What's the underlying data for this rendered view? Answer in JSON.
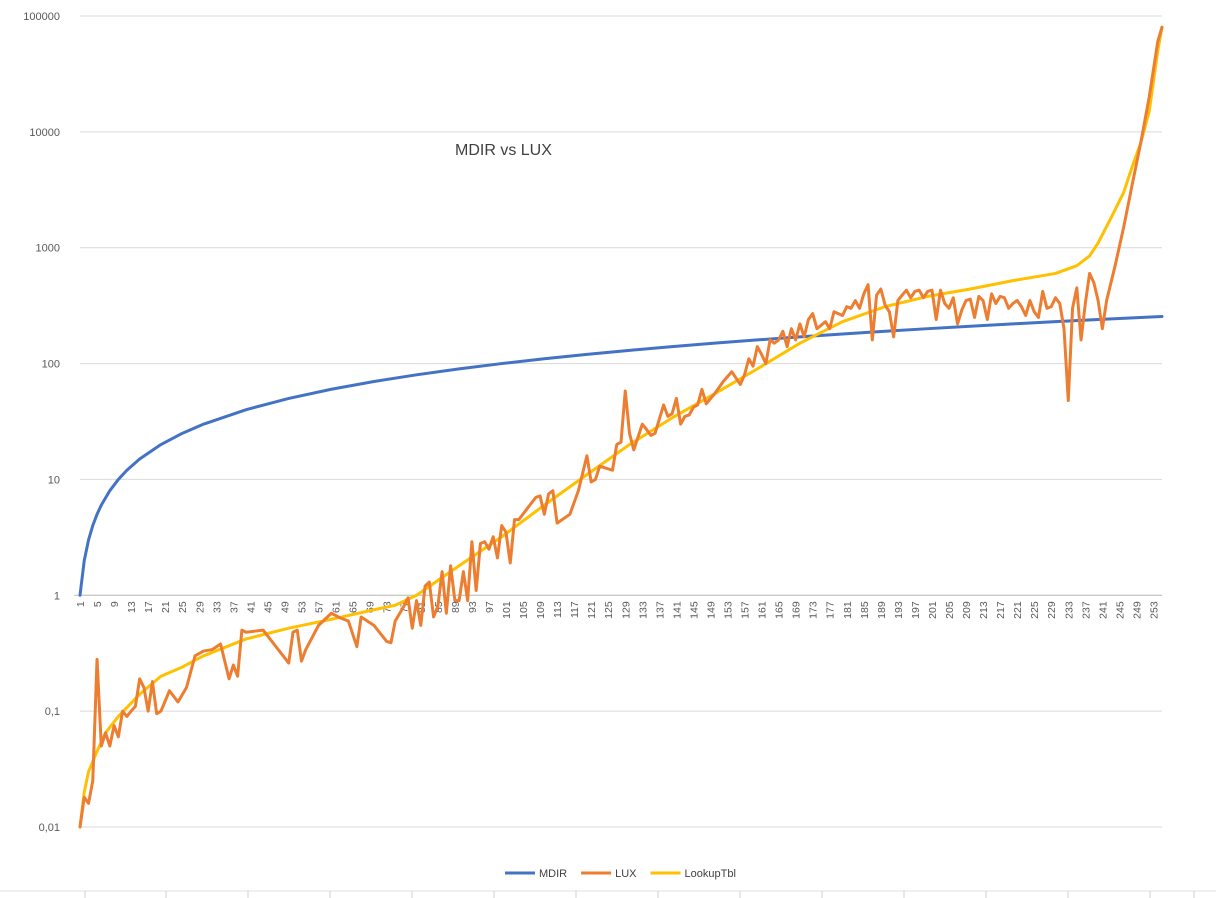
{
  "chart_data": {
    "type": "line",
    "title": "MDIR vs LUX",
    "xlabel": "",
    "ylabel": "",
    "y_scale": "log",
    "ylim": [
      0.01,
      100000
    ],
    "y_tick_labels": [
      "0,01",
      "0,1",
      "1",
      "10",
      "100",
      "1000",
      "10000",
      "100000"
    ],
    "x": "1..255",
    "x_tick_labels": [
      "1",
      "5",
      "9",
      "13",
      "17",
      "21",
      "25",
      "29",
      "33",
      "37",
      "41",
      "45",
      "49",
      "53",
      "57",
      "61",
      "65",
      "69",
      "73",
      "77",
      "81",
      "85",
      "89",
      "93",
      "97",
      "101",
      "105",
      "109",
      "113",
      "117",
      "121",
      "125",
      "129",
      "133",
      "137",
      "141",
      "145",
      "149",
      "153",
      "157",
      "161",
      "165",
      "169",
      "173",
      "177",
      "181",
      "185",
      "189",
      "193",
      "197",
      "201",
      "205",
      "209",
      "213",
      "217",
      "221",
      "225",
      "229",
      "233",
      "237",
      "241",
      "245",
      "249",
      "253"
    ],
    "legend_position": "bottom",
    "grid": true,
    "series": [
      {
        "name": "MDIR",
        "color": "#4472C4",
        "points": [
          [
            1,
            1
          ],
          [
            2,
            2
          ],
          [
            3,
            3
          ],
          [
            4,
            4
          ],
          [
            5,
            5
          ],
          [
            6,
            6
          ],
          [
            8,
            8
          ],
          [
            10,
            10
          ],
          [
            12,
            12
          ],
          [
            15,
            15
          ],
          [
            20,
            20
          ],
          [
            25,
            25
          ],
          [
            30,
            30
          ],
          [
            40,
            40
          ],
          [
            50,
            50
          ],
          [
            60,
            60
          ],
          [
            70,
            70
          ],
          [
            80,
            80
          ],
          [
            90,
            90
          ],
          [
            100,
            100
          ],
          [
            110,
            110
          ],
          [
            120,
            120
          ],
          [
            130,
            130
          ],
          [
            140,
            140
          ],
          [
            150,
            150
          ],
          [
            160,
            160
          ],
          [
            170,
            170
          ],
          [
            180,
            180
          ],
          [
            190,
            190
          ],
          [
            200,
            200
          ],
          [
            210,
            210
          ],
          [
            220,
            220
          ],
          [
            230,
            230
          ],
          [
            240,
            240
          ],
          [
            250,
            250
          ],
          [
            255,
            255
          ]
        ]
      },
      {
        "name": "LUX",
        "color": "#ED7D31",
        "points": [
          [
            1,
            0.01
          ],
          [
            2,
            0.018
          ],
          [
            3,
            0.016
          ],
          [
            4,
            0.025
          ],
          [
            5,
            0.28
          ],
          [
            6,
            0.05
          ],
          [
            7,
            0.065
          ],
          [
            8,
            0.05
          ],
          [
            9,
            0.075
          ],
          [
            10,
            0.06
          ],
          [
            11,
            0.1
          ],
          [
            12,
            0.09
          ],
          [
            13,
            0.1
          ],
          [
            14,
            0.11
          ],
          [
            15,
            0.19
          ],
          [
            16,
            0.16
          ],
          [
            17,
            0.1
          ],
          [
            18,
            0.18
          ],
          [
            19,
            0.095
          ],
          [
            20,
            0.1
          ],
          [
            22,
            0.15
          ],
          [
            24,
            0.12
          ],
          [
            26,
            0.16
          ],
          [
            28,
            0.3
          ],
          [
            30,
            0.33
          ],
          [
            32,
            0.34
          ],
          [
            34,
            0.38
          ],
          [
            36,
            0.19
          ],
          [
            37,
            0.25
          ],
          [
            38,
            0.2
          ],
          [
            39,
            0.5
          ],
          [
            40,
            0.48
          ],
          [
            42,
            0.49
          ],
          [
            44,
            0.5
          ],
          [
            50,
            0.26
          ],
          [
            51,
            0.48
          ],
          [
            52,
            0.5
          ],
          [
            53,
            0.27
          ],
          [
            54,
            0.34
          ],
          [
            57,
            0.55
          ],
          [
            60,
            0.7
          ],
          [
            62,
            0.64
          ],
          [
            64,
            0.6
          ],
          [
            66,
            0.36
          ],
          [
            67,
            0.65
          ],
          [
            70,
            0.55
          ],
          [
            73,
            0.4
          ],
          [
            74,
            0.39
          ],
          [
            75,
            0.6
          ],
          [
            77,
            0.8
          ],
          [
            78,
            0.95
          ],
          [
            79,
            0.52
          ],
          [
            80,
            0.9
          ],
          [
            81,
            0.55
          ],
          [
            82,
            1.2
          ],
          [
            83,
            1.3
          ],
          [
            84,
            0.65
          ],
          [
            85,
            0.8
          ],
          [
            86,
            1.6
          ],
          [
            87,
            0.7
          ],
          [
            88,
            1.8
          ],
          [
            89,
            0.9
          ],
          [
            90,
            0.9
          ],
          [
            91,
            1.6
          ],
          [
            92,
            0.9
          ],
          [
            93,
            2.9
          ],
          [
            94,
            1.1
          ],
          [
            95,
            2.8
          ],
          [
            96,
            2.9
          ],
          [
            97,
            2.5
          ],
          [
            98,
            3.2
          ],
          [
            99,
            2.1
          ],
          [
            100,
            4
          ],
          [
            101,
            3.5
          ],
          [
            102,
            1.9
          ],
          [
            103,
            4.5
          ],
          [
            104,
            4.5
          ],
          [
            108,
            7
          ],
          [
            109,
            7.2
          ],
          [
            110,
            5
          ],
          [
            111,
            7.5
          ],
          [
            112,
            8
          ],
          [
            113,
            4.2
          ],
          [
            116,
            5
          ],
          [
            118,
            8
          ],
          [
            120,
            16
          ],
          [
            121,
            9.5
          ],
          [
            122,
            10
          ],
          [
            123,
            13
          ],
          [
            126,
            12
          ],
          [
            127,
            20
          ],
          [
            128,
            21
          ],
          [
            129,
            58
          ],
          [
            130,
            25
          ],
          [
            131,
            18
          ],
          [
            133,
            30
          ],
          [
            134,
            27
          ],
          [
            135,
            24
          ],
          [
            136,
            25
          ],
          [
            138,
            44
          ],
          [
            139,
            35
          ],
          [
            140,
            37
          ],
          [
            141,
            50
          ],
          [
            142,
            30
          ],
          [
            143,
            35
          ],
          [
            144,
            36
          ],
          [
            145,
            42
          ],
          [
            146,
            44
          ],
          [
            147,
            60
          ],
          [
            148,
            45
          ],
          [
            150,
            55
          ],
          [
            152,
            70
          ],
          [
            154,
            85
          ],
          [
            155,
            75
          ],
          [
            156,
            66
          ],
          [
            157,
            80
          ],
          [
            158,
            110
          ],
          [
            159,
            95
          ],
          [
            160,
            140
          ],
          [
            161,
            120
          ],
          [
            162,
            100
          ],
          [
            163,
            160
          ],
          [
            164,
            150
          ],
          [
            165,
            160
          ],
          [
            166,
            190
          ],
          [
            167,
            140
          ],
          [
            168,
            200
          ],
          [
            169,
            160
          ],
          [
            170,
            220
          ],
          [
            171,
            170
          ],
          [
            172,
            240
          ],
          [
            173,
            270
          ],
          [
            174,
            200
          ],
          [
            176,
            230
          ],
          [
            177,
            200
          ],
          [
            178,
            280
          ],
          [
            180,
            260
          ],
          [
            181,
            310
          ],
          [
            182,
            300
          ],
          [
            183,
            350
          ],
          [
            184,
            300
          ],
          [
            185,
            400
          ],
          [
            186,
            480
          ],
          [
            187,
            160
          ],
          [
            188,
            390
          ],
          [
            189,
            440
          ],
          [
            190,
            320
          ],
          [
            191,
            280
          ],
          [
            192,
            170
          ],
          [
            193,
            350
          ],
          [
            194,
            390
          ],
          [
            195,
            430
          ],
          [
            196,
            370
          ],
          [
            197,
            420
          ],
          [
            198,
            430
          ],
          [
            199,
            370
          ],
          [
            200,
            420
          ],
          [
            201,
            430
          ],
          [
            202,
            240
          ],
          [
            203,
            430
          ],
          [
            204,
            330
          ],
          [
            205,
            300
          ],
          [
            206,
            370
          ],
          [
            207,
            220
          ],
          [
            208,
            290
          ],
          [
            209,
            350
          ],
          [
            210,
            360
          ],
          [
            211,
            250
          ],
          [
            212,
            380
          ],
          [
            213,
            350
          ],
          [
            214,
            240
          ],
          [
            215,
            400
          ],
          [
            216,
            330
          ],
          [
            217,
            380
          ],
          [
            218,
            370
          ],
          [
            219,
            300
          ],
          [
            220,
            330
          ],
          [
            221,
            350
          ],
          [
            222,
            310
          ],
          [
            223,
            260
          ],
          [
            224,
            350
          ],
          [
            225,
            280
          ],
          [
            226,
            250
          ],
          [
            227,
            420
          ],
          [
            228,
            300
          ],
          [
            229,
            310
          ],
          [
            230,
            370
          ],
          [
            231,
            330
          ],
          [
            232,
            200
          ],
          [
            233,
            48
          ],
          [
            234,
            300
          ],
          [
            235,
            450
          ],
          [
            236,
            160
          ],
          [
            237,
            330
          ],
          [
            238,
            600
          ],
          [
            239,
            500
          ],
          [
            240,
            350
          ],
          [
            241,
            200
          ],
          [
            242,
            350
          ],
          [
            244,
            700
          ],
          [
            246,
            1500
          ],
          [
            248,
            3500
          ],
          [
            250,
            8000
          ],
          [
            252,
            20000
          ],
          [
            254,
            60000
          ],
          [
            255,
            80000
          ]
        ]
      },
      {
        "name": "LookupTbl",
        "color": "#FFC000",
        "points": [
          [
            1,
            0.01
          ],
          [
            2,
            0.02
          ],
          [
            3,
            0.03
          ],
          [
            5,
            0.045
          ],
          [
            7,
            0.065
          ],
          [
            10,
            0.09
          ],
          [
            15,
            0.14
          ],
          [
            20,
            0.2
          ],
          [
            25,
            0.24
          ],
          [
            30,
            0.3
          ],
          [
            40,
            0.42
          ],
          [
            50,
            0.52
          ],
          [
            60,
            0.62
          ],
          [
            70,
            0.75
          ],
          [
            75,
            0.82
          ],
          [
            80,
            1.0
          ],
          [
            90,
            1.8
          ],
          [
            100,
            3.2
          ],
          [
            110,
            6
          ],
          [
            120,
            11
          ],
          [
            130,
            20
          ],
          [
            140,
            34
          ],
          [
            150,
            55
          ],
          [
            160,
            90
          ],
          [
            170,
            150
          ],
          [
            180,
            230
          ],
          [
            190,
            310
          ],
          [
            200,
            380
          ],
          [
            210,
            440
          ],
          [
            220,
            520
          ],
          [
            230,
            600
          ],
          [
            235,
            700
          ],
          [
            238,
            850
          ],
          [
            240,
            1100
          ],
          [
            243,
            1800
          ],
          [
            246,
            3000
          ],
          [
            248,
            5000
          ],
          [
            250,
            8000
          ],
          [
            252,
            15000
          ],
          [
            254,
            50000
          ],
          [
            255,
            80000
          ]
        ]
      }
    ]
  }
}
